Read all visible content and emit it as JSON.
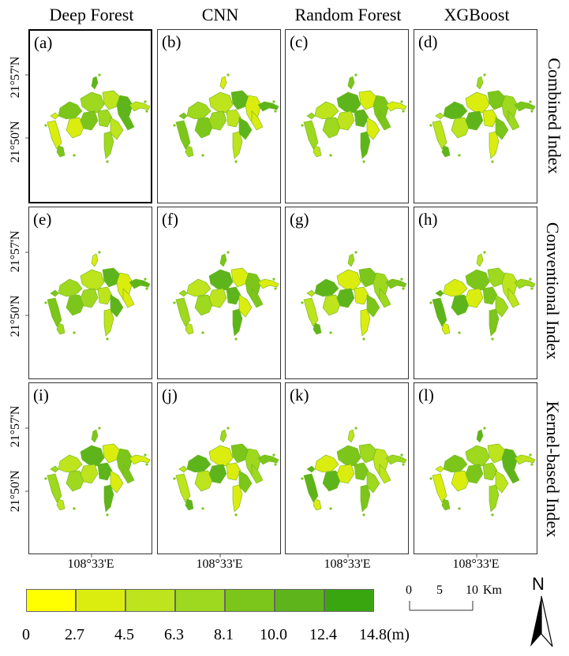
{
  "columns": [
    "Deep Forest",
    "CNN",
    "Random Forest",
    "XGBoost"
  ],
  "rows": [
    "Combined Index",
    "Conventional Index",
    "Kernel-based Index"
  ],
  "panel_letters": [
    "(a)",
    "(b)",
    "(c)",
    "(d)",
    "(e)",
    "(f)",
    "(g)",
    "(h)",
    "(i)",
    "(j)",
    "(k)",
    "(l)"
  ],
  "lat_labels": [
    "21°57'N",
    "21°50'N"
  ],
  "lon_label": "108°33'E",
  "legend": {
    "breaks": [
      "0",
      "2.7",
      "4.5",
      "6.3",
      "8.1",
      "10.0",
      "12.4",
      "14.8(m)"
    ],
    "colors": [
      "#ffff00",
      "#dbed0e",
      "#bde41c",
      "#9ed81f",
      "#7cc61b",
      "#5db51b",
      "#3aa60f"
    ]
  },
  "scale_bar": {
    "ticks": [
      "0",
      "5",
      "10"
    ],
    "unit": "Km"
  },
  "north_arrow": {
    "label": "N",
    "icon": "north-arrow-icon"
  },
  "map_colors": [
    "#7cc61b",
    "#9ed81f",
    "#bde41c",
    "#5db51b",
    "#dbed0e"
  ]
}
